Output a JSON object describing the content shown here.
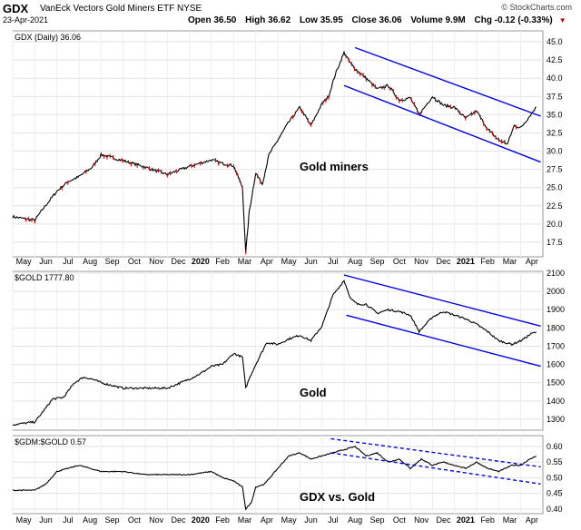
{
  "header": {
    "symbol": "GDX",
    "name": "VanEck Vectors Gold Miners ETF",
    "exchange": "NYSE",
    "date": "23-Apr-2021",
    "open": "Open 36.50",
    "high": "High 36.62",
    "low": "Low 35.95",
    "close": "Close 36.06",
    "volume": "Volume 9.9M",
    "chg": "Chg -0.12 (-0.33%)",
    "credit": "© StockCharts.com",
    "down_color": "#cc0000"
  },
  "x_labels": [
    "May",
    "Jun",
    "Jul",
    "Aug",
    "Sep",
    "Oct",
    "Nov",
    "Dec",
    "2020",
    "Feb",
    "Mar",
    "Apr",
    "May",
    "Jun",
    "Jul",
    "Aug",
    "Sep",
    "Oct",
    "Nov",
    "Dec",
    "2021",
    "Feb",
    "Mar",
    "Apr"
  ],
  "chart_data": [
    {
      "type": "line",
      "panel": "top",
      "label": "GDX (Daily) 36.06",
      "annotation": "Gold miners",
      "yticks": [
        17.5,
        20.0,
        22.5,
        25.0,
        27.5,
        30.0,
        32.5,
        35.0,
        37.5,
        40.0,
        42.5,
        45.0
      ],
      "ylim": [
        15.5,
        46.5
      ],
      "line_color": "#000000",
      "down_color": "#cc0000",
      "channel_color": "#0000ee",
      "x_months": [
        0.0,
        1.0,
        1.4,
        2.0,
        2.5,
        3.0,
        3.6,
        4.0,
        5.0,
        6.0,
        7.0,
        8.0,
        9.0,
        9.5,
        10.0,
        10.4,
        10.55,
        10.7,
        11.0,
        11.3,
        11.6,
        12.0,
        12.5,
        13.0,
        13.5,
        14.0,
        14.3,
        14.6,
        15.0,
        15.3,
        15.6,
        16.0,
        16.5,
        17.0,
        17.5,
        18.0,
        18.4,
        19.0,
        19.5,
        20.0,
        20.5,
        21.0,
        21.5,
        22.0,
        22.4,
        22.7,
        23.0,
        23.4,
        23.7
      ],
      "values": [
        21.0,
        20.5,
        22.2,
        24.5,
        25.8,
        26.5,
        27.8,
        29.5,
        28.7,
        27.8,
        26.8,
        27.9,
        28.8,
        28.3,
        28.0,
        25.0,
        16.0,
        21.5,
        27.0,
        25.5,
        29.5,
        31.5,
        34.0,
        36.0,
        33.5,
        36.5,
        37.5,
        40.5,
        43.5,
        42.0,
        41.0,
        40.0,
        38.5,
        39.0,
        37.0,
        37.3,
        35.0,
        37.5,
        36.3,
        36.0,
        34.5,
        35.5,
        33.0,
        31.5,
        31.0,
        33.5,
        33.2,
        34.8,
        36.06
      ],
      "channels": [
        {
          "x": [
            15.5,
            23.9
          ],
          "y": [
            44.2,
            34.8
          ]
        },
        {
          "x": [
            15.0,
            23.9
          ],
          "y": [
            39.0,
            28.5
          ]
        }
      ]
    },
    {
      "type": "line",
      "panel": "middle",
      "label": "$GOLD 1777.80",
      "annotation": "Gold",
      "yticks": [
        1300,
        1400,
        1500,
        1600,
        1700,
        1800,
        1900,
        2000,
        2100
      ],
      "ylim": [
        1240,
        2110
      ],
      "line_color": "#000000",
      "channel_color": "#0000ee",
      "x_months": [
        0.0,
        1.0,
        1.3,
        1.8,
        2.3,
        2.8,
        3.2,
        3.6,
        4.0,
        5.0,
        6.0,
        7.0,
        8.0,
        8.5,
        9.0,
        9.5,
        10.0,
        10.4,
        10.55,
        10.7,
        11.0,
        11.5,
        12.0,
        12.5,
        13.0,
        13.5,
        14.0,
        14.5,
        15.0,
        15.3,
        15.6,
        16.0,
        16.5,
        17.0,
        17.5,
        18.0,
        18.4,
        19.0,
        19.5,
        20.0,
        20.5,
        21.0,
        21.5,
        22.0,
        22.3,
        22.6,
        23.0,
        23.5,
        23.7
      ],
      "values": [
        1270,
        1285,
        1330,
        1410,
        1420,
        1500,
        1530,
        1520,
        1500,
        1470,
        1470,
        1470,
        1520,
        1550,
        1590,
        1600,
        1660,
        1640,
        1470,
        1520,
        1600,
        1720,
        1710,
        1740,
        1760,
        1730,
        1810,
        1980,
        2060,
        1960,
        1930,
        1930,
        1880,
        1900,
        1890,
        1870,
        1780,
        1860,
        1890,
        1870,
        1850,
        1820,
        1780,
        1730,
        1720,
        1710,
        1730,
        1770,
        1777.8
      ],
      "channels": [
        {
          "x": [
            15.0,
            23.9
          ],
          "y": [
            2090,
            1810
          ]
        },
        {
          "x": [
            15.1,
            23.9
          ],
          "y": [
            1870,
            1590
          ]
        }
      ]
    },
    {
      "type": "line",
      "panel": "bottom",
      "label": "$GDM:$GOLD 0.57",
      "annotation": "GDX vs. Gold",
      "yticks": [
        0.4,
        0.45,
        0.5,
        0.55,
        0.6
      ],
      "ylim": [
        0.385,
        0.635
      ],
      "line_color": "#000000",
      "channel_color": "#0000ee",
      "x_months": [
        0.0,
        1.0,
        1.5,
        2.0,
        2.5,
        3.0,
        3.5,
        4.0,
        5.0,
        6.0,
        7.0,
        8.0,
        9.0,
        9.5,
        10.0,
        10.4,
        10.55,
        10.8,
        11.0,
        11.4,
        12.0,
        12.5,
        13.0,
        13.5,
        14.0,
        14.5,
        15.0,
        15.5,
        16.0,
        16.5,
        17.0,
        17.5,
        18.0,
        18.5,
        19.0,
        19.5,
        20.0,
        20.5,
        21.0,
        21.5,
        22.0,
        22.3,
        22.6,
        23.0,
        23.3,
        23.7
      ],
      "values": [
        0.46,
        0.46,
        0.48,
        0.52,
        0.53,
        0.54,
        0.53,
        0.52,
        0.52,
        0.51,
        0.51,
        0.51,
        0.52,
        0.5,
        0.49,
        0.47,
        0.4,
        0.42,
        0.47,
        0.48,
        0.53,
        0.57,
        0.58,
        0.56,
        0.57,
        0.58,
        0.59,
        0.6,
        0.57,
        0.58,
        0.55,
        0.56,
        0.53,
        0.56,
        0.54,
        0.55,
        0.54,
        0.53,
        0.55,
        0.53,
        0.52,
        0.53,
        0.54,
        0.54,
        0.555,
        0.57
      ],
      "channels": [
        {
          "x": [
            14.4,
            23.9
          ],
          "y": [
            0.625,
            0.535
          ]
        },
        {
          "x": [
            14.4,
            23.9
          ],
          "y": [
            0.58,
            0.48
          ]
        }
      ]
    }
  ]
}
